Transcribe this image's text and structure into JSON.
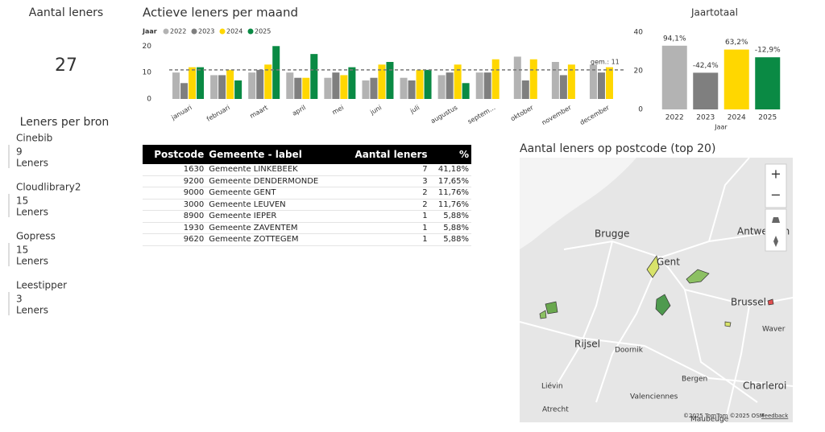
{
  "cards": {
    "total_title": "Aantal leners",
    "total_value": 27,
    "source_title": "Leners per bron",
    "sources": [
      {
        "name": "Cinebib",
        "value": 9,
        "unit": "Leners"
      },
      {
        "name": "Cloudlibrary2",
        "value": 15,
        "unit": "Leners"
      },
      {
        "name": "Gopress",
        "value": 15,
        "unit": "Leners"
      },
      {
        "name": "Leestipper",
        "value": 3,
        "unit": "Leners"
      }
    ]
  },
  "chart_data": [
    {
      "type": "bar",
      "title": "Actieve leners per maand",
      "legend_title": "Jaar",
      "categories": [
        "januari",
        "februari",
        "maart",
        "april",
        "mei",
        "juni",
        "juli",
        "augustus",
        "septem…",
        "oktober",
        "november",
        "december"
      ],
      "series": [
        {
          "name": "2022",
          "color": "#b3b3b3",
          "values": [
            10,
            9,
            10,
            10,
            8,
            7,
            8,
            9,
            10,
            16,
            14,
            13
          ]
        },
        {
          "name": "2023",
          "color": "#7f7f7f",
          "values": [
            6,
            9,
            11,
            8,
            10,
            8,
            7,
            10,
            10,
            7,
            9,
            10
          ]
        },
        {
          "name": "2024",
          "color": "#ffd700",
          "values": [
            12,
            11,
            13,
            8,
            9,
            13,
            11,
            13,
            15,
            15,
            13,
            12
          ]
        },
        {
          "name": "2025",
          "color": "#0a8a44",
          "values": [
            12,
            7,
            20,
            17,
            12,
            14,
            11,
            6,
            null,
            null,
            null,
            null
          ]
        }
      ],
      "ylim": [
        0,
        21
      ],
      "yticks": [
        0,
        10,
        20
      ],
      "average": 11,
      "average_label": "gem.: 11"
    },
    {
      "type": "bar",
      "title": "Jaartotaal",
      "x_label": "Jaar",
      "categories": [
        "2022",
        "2023",
        "2024",
        "2025"
      ],
      "values": [
        33,
        19,
        31,
        27
      ],
      "colors": [
        "#b3b3b3",
        "#7f7f7f",
        "#ffd700",
        "#0a8a44"
      ],
      "change_labels": [
        "94,1%",
        "-42,4%",
        "63,2%",
        "-12,9%"
      ],
      "change_colors": [
        "#0a8a44",
        "#b22222",
        "#0a8a44",
        "#b22222"
      ],
      "ylim": [
        0,
        40
      ],
      "yticks": [
        0,
        20,
        40
      ]
    }
  ],
  "table": {
    "columns": [
      "Postcode",
      "Gemeente - label",
      "Aantal leners",
      "%"
    ],
    "rows": [
      [
        "1630",
        "Gemeente LINKEBEEK",
        7,
        "41,18%"
      ],
      [
        "9200",
        "Gemeente DENDERMONDE",
        3,
        "17,65%"
      ],
      [
        "9000",
        "Gemeente GENT",
        2,
        "11,76%"
      ],
      [
        "3000",
        "Gemeente LEUVEN",
        2,
        "11,76%"
      ],
      [
        "8900",
        "Gemeente IEPER",
        1,
        "5,88%"
      ],
      [
        "1930",
        "Gemeente ZAVENTEM",
        1,
        "5,88%"
      ],
      [
        "9620",
        "Gemeente ZOTTEGEM",
        1,
        "5,88%"
      ]
    ]
  },
  "map": {
    "title": "Aantal leners op postcode (top 20)",
    "places": [
      "Brugge",
      "Gent",
      "Antwerpen",
      "Brussel",
      "Waver",
      "Rijsel",
      "Doornik",
      "Bergen",
      "Charleroi",
      "Valenciennes",
      "Liévin",
      "Atrecht",
      "Maubeuge"
    ],
    "attribution": "©2025 TomTom ©2025 OSM",
    "feedback": "Feedback"
  }
}
